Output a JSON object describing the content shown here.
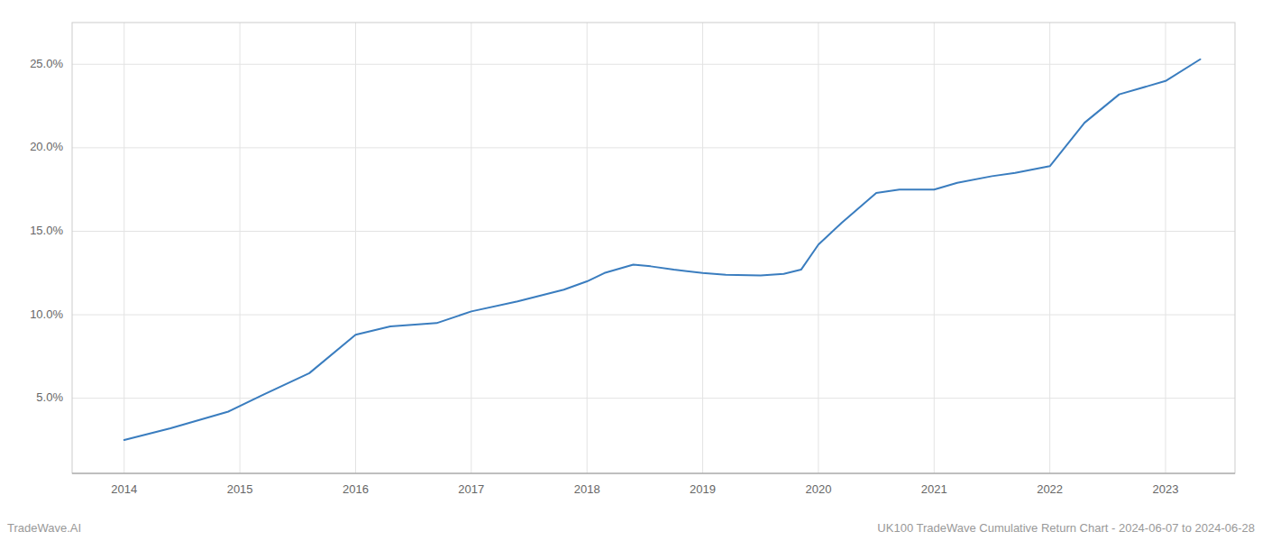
{
  "chart_data": {
    "type": "line",
    "x": [
      2014.0,
      2014.4,
      2014.9,
      2015.2,
      2015.6,
      2016.0,
      2016.3,
      2016.7,
      2017.0,
      2017.4,
      2017.8,
      2018.0,
      2018.15,
      2018.4,
      2018.55,
      2018.75,
      2019.0,
      2019.2,
      2019.5,
      2019.7,
      2019.85,
      2020.0,
      2020.2,
      2020.5,
      2020.7,
      2021.0,
      2021.2,
      2021.5,
      2021.7,
      2022.0,
      2022.3,
      2022.6,
      2022.85,
      2023.0,
      2023.3
    ],
    "values": [
      2.5,
      3.2,
      4.2,
      5.2,
      6.5,
      8.8,
      9.3,
      9.5,
      10.2,
      10.8,
      11.5,
      12.0,
      12.5,
      13.0,
      12.9,
      12.7,
      12.5,
      12.4,
      12.35,
      12.45,
      12.7,
      14.2,
      15.5,
      17.3,
      17.5,
      17.5,
      17.9,
      18.3,
      18.5,
      18.9,
      21.5,
      23.2,
      23.7,
      24.0,
      25.3
    ],
    "color": "#3a7dbf",
    "xlim": [
      2013.55,
      2023.6
    ],
    "ylim": [
      0.5,
      27.5
    ],
    "xticks": [
      2014,
      2015,
      2016,
      2017,
      2018,
      2019,
      2020,
      2021,
      2022,
      2023
    ],
    "yticks": [
      {
        "value": 5.0,
        "label": "5.0%"
      },
      {
        "value": 10.0,
        "label": "10.0%"
      },
      {
        "value": 15.0,
        "label": "15.0%"
      },
      {
        "value": 20.0,
        "label": "20.0%"
      },
      {
        "value": 25.0,
        "label": "25.0%"
      }
    ],
    "grid": true,
    "annotations": [
      "TradeWave.AI",
      "UK100 TradeWave Cumulative Return Chart - 2024-06-07 to 2024-06-28"
    ]
  }
}
